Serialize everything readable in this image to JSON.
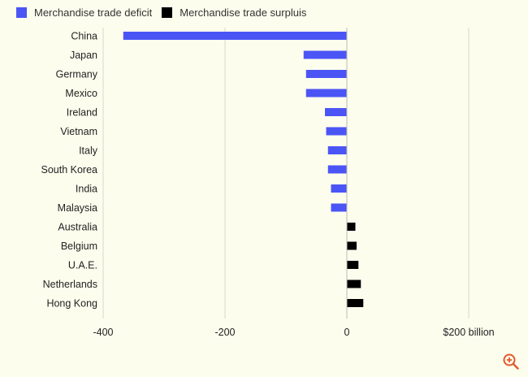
{
  "chart_data": {
    "type": "bar",
    "orientation": "horizontal",
    "categories": [
      "China",
      "Japan",
      "Germany",
      "Mexico",
      "Ireland",
      "Vietnam",
      "Italy",
      "South Korea",
      "India",
      "Malaysia",
      "Australia",
      "Belgium",
      "U.A.E.",
      "Netherlands",
      "Hong Kong"
    ],
    "values": [
      -367,
      -71,
      -67,
      -67,
      -36,
      -34,
      -31,
      -31,
      -26,
      -26,
      14,
      16,
      19,
      23,
      27
    ],
    "series": [
      {
        "name": "Merchandise trade deficit",
        "color": "#4b55f5"
      },
      {
        "name": "Merchandise trade surpluis",
        "color": "#000000"
      }
    ],
    "xlim": [
      -400,
      200
    ],
    "xticks": [
      -400,
      -200,
      0,
      200
    ],
    "xtick_labels": [
      "-400",
      "-200",
      "0",
      "$200 billion"
    ],
    "grid": true,
    "legend_position": "top-left"
  },
  "icons": {
    "zoom": "zoom-in-icon"
  },
  "colors": {
    "background": "#fdfdee",
    "deficit": "#4b55f5",
    "surplus": "#000000",
    "zoom": "#e05a2b"
  }
}
